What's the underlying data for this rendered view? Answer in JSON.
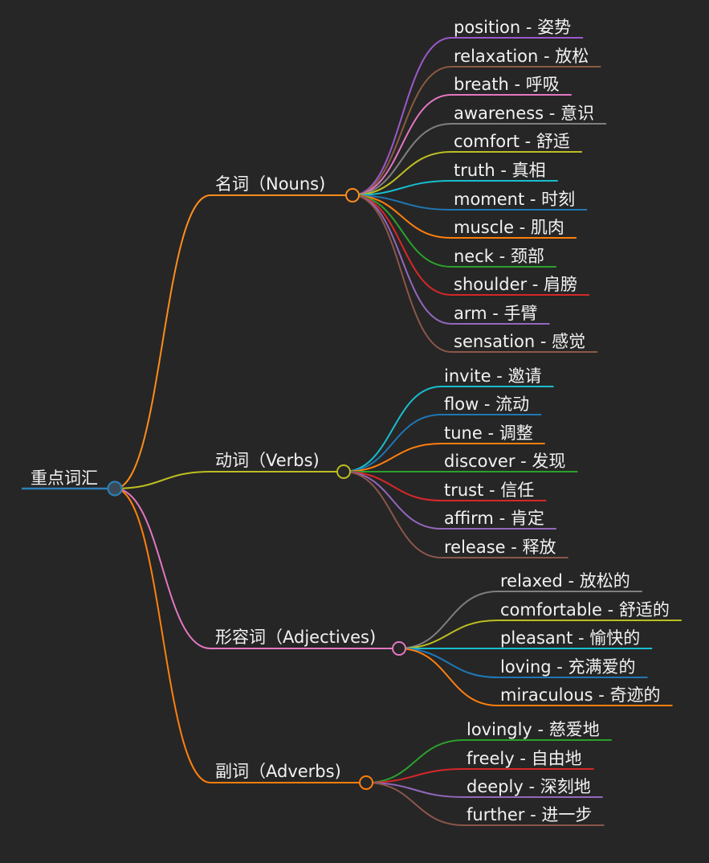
{
  "root": {
    "label": "重点词汇",
    "color": "#2c7fb8"
  },
  "branches": [
    {
      "label": "名词（Nouns)",
      "color": "#ff8c1a",
      "items": [
        {
          "label": "position - 姿势",
          "color": "#9b59c9"
        },
        {
          "label": "relaxation - 放松",
          "color": "#8b5a40"
        },
        {
          "label": "breath - 呼吸",
          "color": "#e377c2"
        },
        {
          "label": "awareness - 意识",
          "color": "#7f7f7f"
        },
        {
          "label": "comfort - 舒适",
          "color": "#bcbd22"
        },
        {
          "label": "truth - 真相",
          "color": "#17becf"
        },
        {
          "label": "moment - 时刻",
          "color": "#1f77b4"
        },
        {
          "label": "muscle - 肌肉",
          "color": "#ff7f0e"
        },
        {
          "label": "neck - 颈部",
          "color": "#2ca02c"
        },
        {
          "label": "shoulder - 肩膀",
          "color": "#d62728"
        },
        {
          "label": "arm - 手臂",
          "color": "#9467bd"
        },
        {
          "label": "sensation - 感觉",
          "color": "#8c564b"
        }
      ]
    },
    {
      "label": "动词（Verbs)",
      "color": "#bcbd22",
      "items": [
        {
          "label": "invite - 邀请",
          "color": "#17becf"
        },
        {
          "label": "flow - 流动",
          "color": "#1f77b4"
        },
        {
          "label": "tune - 调整",
          "color": "#ff7f0e"
        },
        {
          "label": "discover - 发现",
          "color": "#2ca02c"
        },
        {
          "label": "trust - 信任",
          "color": "#d62728"
        },
        {
          "label": "affirm - 肯定",
          "color": "#9467bd"
        },
        {
          "label": "release - 释放",
          "color": "#8c564b"
        }
      ]
    },
    {
      "label": "形容词（Adjectives)",
      "color": "#e377c2",
      "items": [
        {
          "label": "relaxed - 放松的",
          "color": "#7f7f7f"
        },
        {
          "label": "comfortable - 舒适的",
          "color": "#bcbd22"
        },
        {
          "label": "pleasant - 愉快的",
          "color": "#17becf"
        },
        {
          "label": "loving - 充满爱的",
          "color": "#1f77b4"
        },
        {
          "label": "miraculous - 奇迹的",
          "color": "#ff7f0e"
        }
      ]
    },
    {
      "label": "副词（Adverbs)",
      "color": "#ff7f0e",
      "items": [
        {
          "label": "lovingly - 慈爱地",
          "color": "#2ca02c"
        },
        {
          "label": "freely - 自由地",
          "color": "#d62728"
        },
        {
          "label": "deeply - 深刻地",
          "color": "#9467bd"
        },
        {
          "label": "further - 进一步",
          "color": "#8c564b"
        }
      ]
    }
  ]
}
